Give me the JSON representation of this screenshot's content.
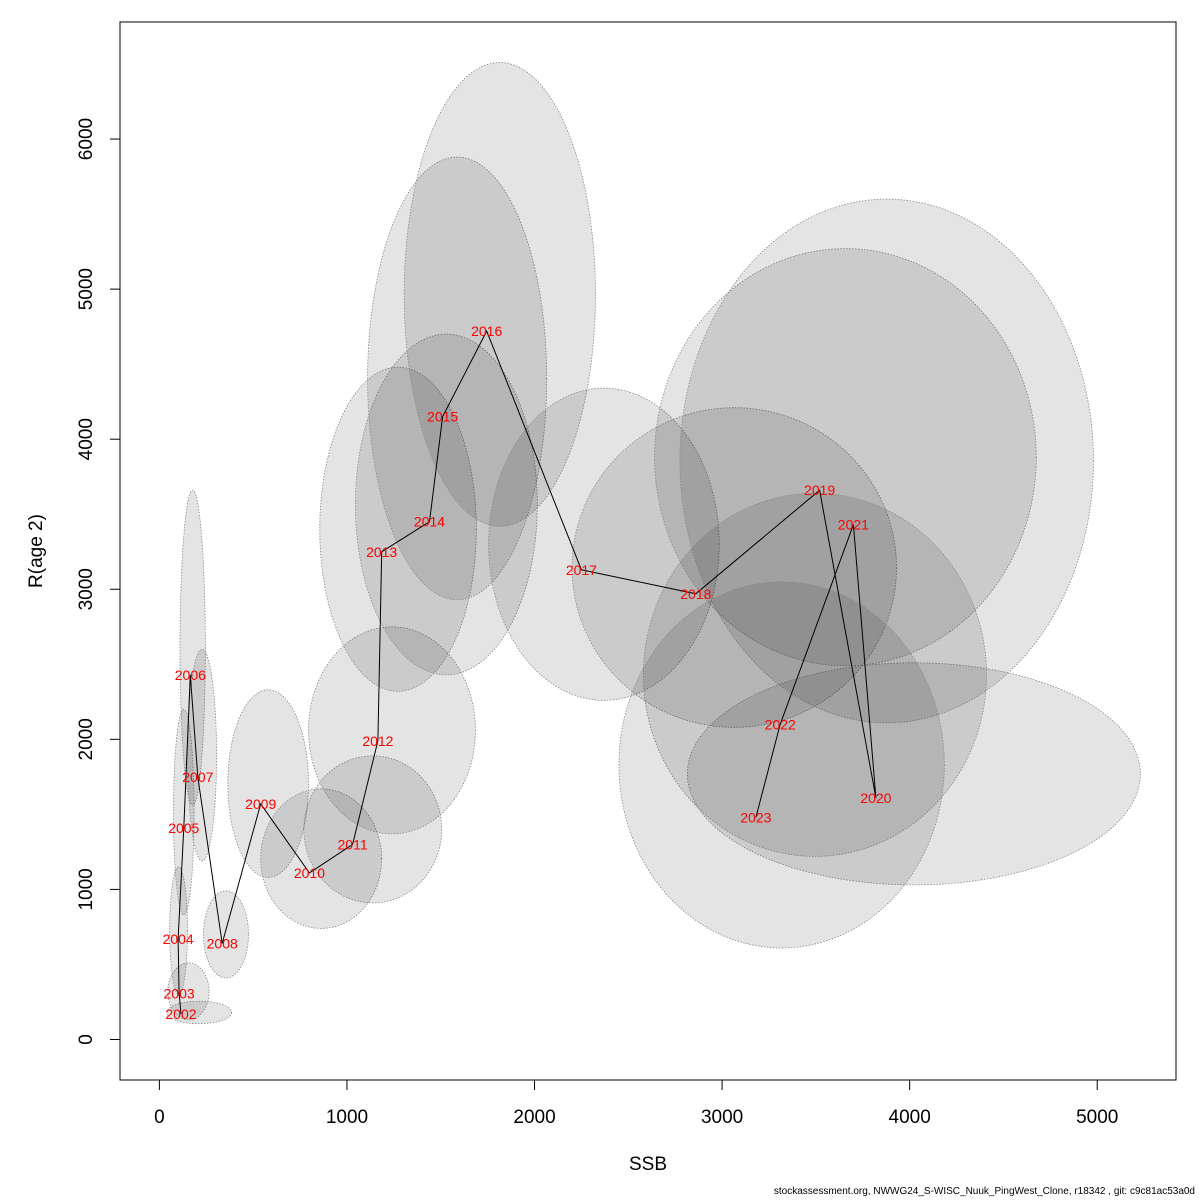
{
  "chart_data": {
    "type": "scatter",
    "title": "",
    "xlabel": "SSB",
    "ylabel": "R(age 2)",
    "xlim": [
      -210,
      5420
    ],
    "ylim": [
      -270,
      6780
    ],
    "x_ticks": [
      0,
      1000,
      2000,
      3000,
      4000,
      5000
    ],
    "y_ticks": [
      0,
      1000,
      2000,
      3000,
      4000,
      5000,
      6000
    ],
    "grid": false,
    "legend": "none",
    "colors": {
      "label": "#ff0000",
      "ellipse_fill": "rgba(0,0,0,0.105)",
      "ellipse_stroke": "#888888",
      "line": "#000000"
    },
    "points": [
      {
        "year": "2002",
        "ssb": 115,
        "r": 170,
        "ellipse": {
          "x0": 40,
          "x1": 385,
          "y0": 105,
          "y1": 255
        }
      },
      {
        "year": "2003",
        "ssb": 105,
        "r": 305,
        "ellipse": {
          "x0": 45,
          "x1": 265,
          "y0": 130,
          "y1": 510
        }
      },
      {
        "year": "2004",
        "ssb": 100,
        "r": 670,
        "ellipse": {
          "x0": 55,
          "x1": 150,
          "y0": 300,
          "y1": 1150
        }
      },
      {
        "year": "2005",
        "ssb": 130,
        "r": 1410,
        "ellipse": {
          "x0": 75,
          "x1": 185,
          "y0": 830,
          "y1": 2200
        }
      },
      {
        "year": "2006",
        "ssb": 165,
        "r": 2430,
        "ellipse": {
          "x0": 110,
          "x1": 245,
          "y0": 1560,
          "y1": 3660
        }
      },
      {
        "year": "2007",
        "ssb": 205,
        "r": 1750,
        "ellipse": {
          "x0": 150,
          "x1": 305,
          "y0": 1190,
          "y1": 2600
        }
      },
      {
        "year": "2008",
        "ssb": 335,
        "r": 640,
        "ellipse": {
          "x0": 235,
          "x1": 475,
          "y0": 410,
          "y1": 990
        }
      },
      {
        "year": "2009",
        "ssb": 540,
        "r": 1570,
        "ellipse": {
          "x0": 365,
          "x1": 795,
          "y0": 1080,
          "y1": 2330
        }
      },
      {
        "year": "2010",
        "ssb": 800,
        "r": 1110,
        "ellipse": {
          "x0": 540,
          "x1": 1185,
          "y0": 740,
          "y1": 1670
        }
      },
      {
        "year": "2011",
        "ssb": 1030,
        "r": 1300,
        "ellipse": {
          "x0": 770,
          "x1": 1505,
          "y0": 910,
          "y1": 1890
        }
      },
      {
        "year": "2012",
        "ssb": 1165,
        "r": 1990,
        "ellipse": {
          "x0": 795,
          "x1": 1685,
          "y0": 1370,
          "y1": 2750
        }
      },
      {
        "year": "2013",
        "ssb": 1185,
        "r": 3250,
        "ellipse": {
          "x0": 855,
          "x1": 1690,
          "y0": 2320,
          "y1": 4480
        }
      },
      {
        "year": "2014",
        "ssb": 1440,
        "r": 3450,
        "ellipse": {
          "x0": 1045,
          "x1": 2015,
          "y0": 2430,
          "y1": 4700
        }
      },
      {
        "year": "2015",
        "ssb": 1510,
        "r": 4150,
        "ellipse": {
          "x0": 1110,
          "x1": 2065,
          "y0": 2930,
          "y1": 5880
        }
      },
      {
        "year": "2016",
        "ssb": 1745,
        "r": 4720,
        "ellipse": {
          "x0": 1305,
          "x1": 2325,
          "y0": 3420,
          "y1": 6510
        }
      },
      {
        "year": "2017",
        "ssb": 2250,
        "r": 3130,
        "ellipse": {
          "x0": 1755,
          "x1": 2985,
          "y0": 2260,
          "y1": 4340
        }
      },
      {
        "year": "2018",
        "ssb": 2860,
        "r": 2970,
        "ellipse": {
          "x0": 2200,
          "x1": 3930,
          "y0": 2080,
          "y1": 4210
        }
      },
      {
        "year": "2019",
        "ssb": 3520,
        "r": 3660,
        "ellipse": {
          "x0": 2640,
          "x1": 4675,
          "y0": 2490,
          "y1": 5270
        }
      },
      {
        "year": "2020",
        "ssb": 3820,
        "r": 1610,
        "ellipse": {
          "x0": 2815,
          "x1": 5230,
          "y0": 1030,
          "y1": 2510
        }
      },
      {
        "year": "2021",
        "ssb": 3700,
        "r": 3430,
        "ellipse": {
          "x0": 2775,
          "x1": 4980,
          "y0": 2110,
          "y1": 5600
        }
      },
      {
        "year": "2022",
        "ssb": 3310,
        "r": 2100,
        "ellipse": {
          "x0": 2580,
          "x1": 4410,
          "y0": 1220,
          "y1": 3640
        }
      },
      {
        "year": "2023",
        "ssb": 3180,
        "r": 1480,
        "ellipse": {
          "x0": 2450,
          "x1": 4185,
          "y0": 610,
          "y1": 3050
        }
      }
    ]
  },
  "footer": "stockassessment.org, NWWG24_S-WISC_Nuuk_PingWest_Clone, r18342 , git: c9c81ac53a0d"
}
